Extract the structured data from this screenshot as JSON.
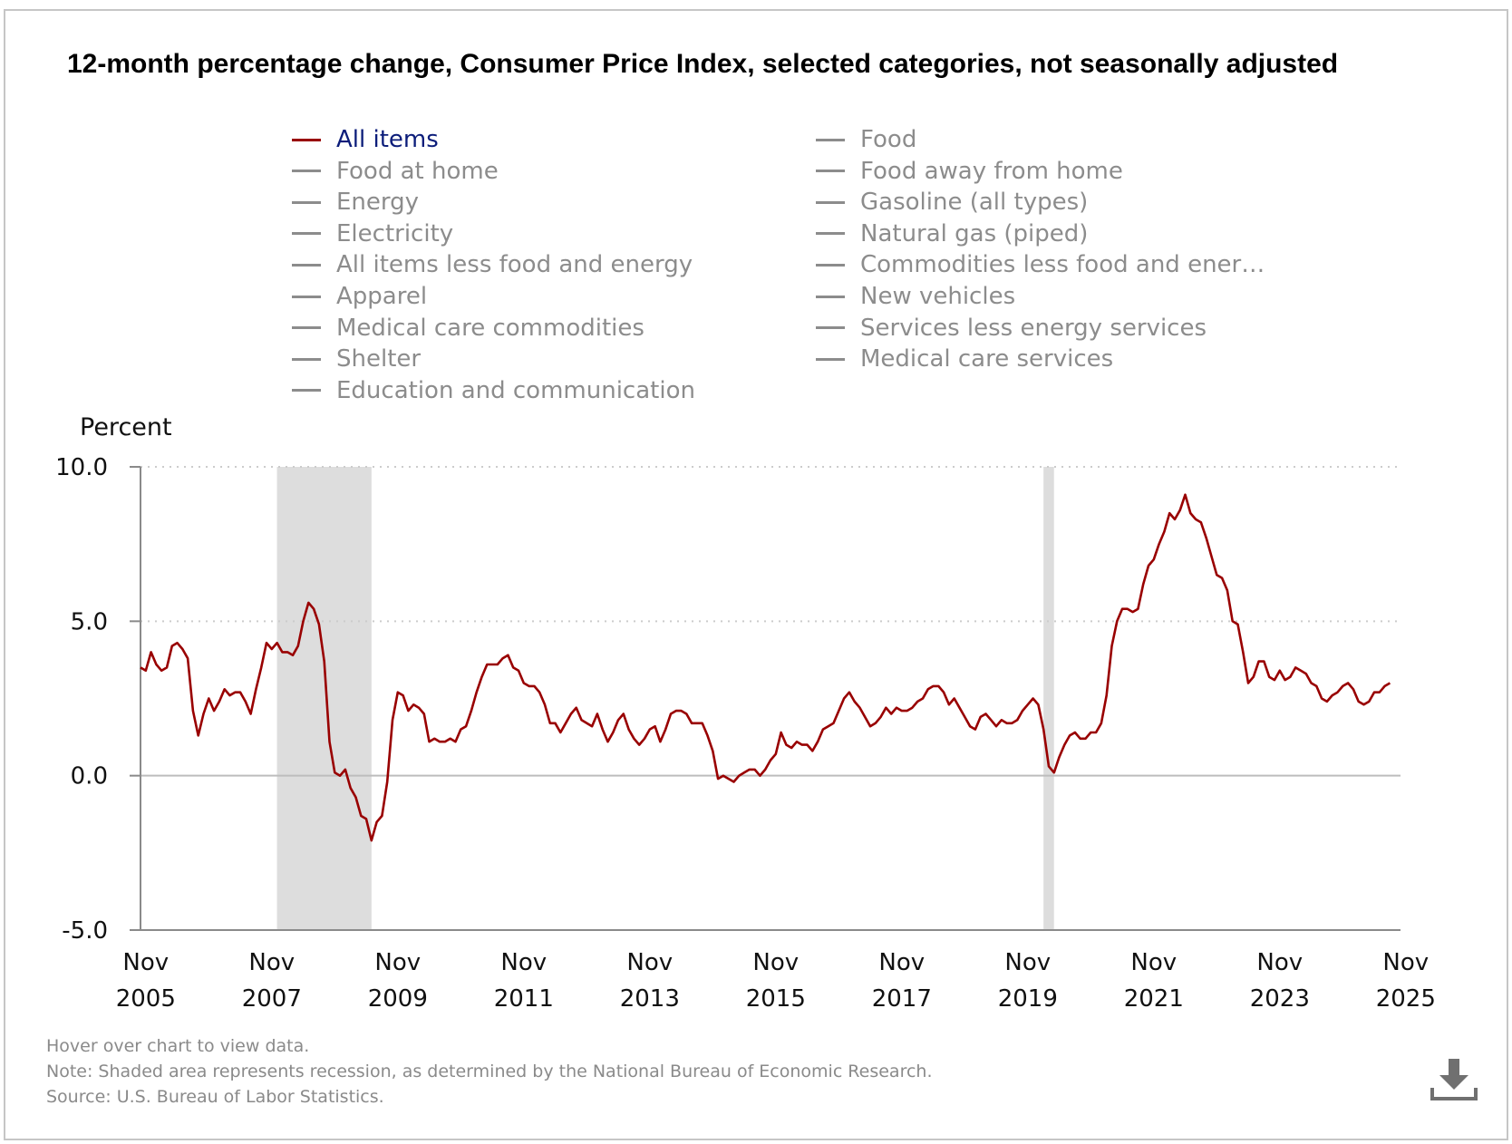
{
  "title": "12-month percentage change, Consumer Price Index, selected categories, not seasonally adjusted",
  "legend": [
    {
      "label": "All items",
      "active": true
    },
    {
      "label": "Food at home"
    },
    {
      "label": "Energy"
    },
    {
      "label": "Electricity"
    },
    {
      "label": "All items less food and energy"
    },
    {
      "label": "Apparel"
    },
    {
      "label": "Medical care commodities"
    },
    {
      "label": "Shelter"
    },
    {
      "label": "Education and communication"
    },
    {
      "label": "Food"
    },
    {
      "label": "Food away from home"
    },
    {
      "label": "Gasoline (all types)"
    },
    {
      "label": "Natural gas (piped)"
    },
    {
      "label": "Commodities less food and ener…"
    },
    {
      "label": "New vehicles"
    },
    {
      "label": "Services less energy services"
    },
    {
      "label": "Medical care services"
    }
  ],
  "footer": {
    "hover": "Hover over chart to view data.",
    "note": "Note: Shaded area represents recession, as determined by the National Bureau of Economic Research.",
    "source": "Source: U.S. Bureau of Labor Statistics."
  },
  "icons": {
    "download": "download-icon"
  },
  "colors": {
    "all_items": "#990000",
    "inactive_legend": "#8c8c8c",
    "active_legend_text": "#0c1d7a",
    "recession": "#dddddd"
  },
  "chart_data": {
    "type": "line",
    "ylabel": "Percent",
    "ylim": [
      -5,
      10
    ],
    "yticks": [
      "10.0",
      "5.0",
      "0.0",
      "-5.0"
    ],
    "ytick_values": [
      10,
      5,
      0,
      -5
    ],
    "xlim": [
      "2005-10",
      "2025-10"
    ],
    "xticks": [
      {
        "month": "Nov",
        "year": "2005",
        "x": "2005-11"
      },
      {
        "month": "Nov",
        "year": "2007",
        "x": "2007-11"
      },
      {
        "month": "Nov",
        "year": "2009",
        "x": "2009-11"
      },
      {
        "month": "Nov",
        "year": "2011",
        "x": "2011-11"
      },
      {
        "month": "Nov",
        "year": "2013",
        "x": "2013-11"
      },
      {
        "month": "Nov",
        "year": "2015",
        "x": "2015-11"
      },
      {
        "month": "Nov",
        "year": "2017",
        "x": "2017-11"
      },
      {
        "month": "Nov",
        "year": "2019",
        "x": "2019-11"
      },
      {
        "month": "Nov",
        "year": "2021",
        "x": "2021-11"
      },
      {
        "month": "Nov",
        "year": "2023",
        "x": "2023-11"
      },
      {
        "month": "Nov",
        "year": "2025",
        "x": "2025-11"
      }
    ],
    "grid": "dotted horizontal lines at 5.0 and 10.0",
    "recessions": [
      {
        "start": "2007-12",
        "end": "2009-06"
      },
      {
        "start": "2020-02",
        "end": "2020-04"
      }
    ],
    "series": [
      {
        "name": "All items",
        "color": "#990000",
        "start": "2005-10",
        "frequency": "monthly",
        "values": [
          3.5,
          3.4,
          4.0,
          3.6,
          3.4,
          3.5,
          4.2,
          4.3,
          4.1,
          3.8,
          2.1,
          1.3,
          2.0,
          2.5,
          2.1,
          2.4,
          2.8,
          2.6,
          2.7,
          2.7,
          2.4,
          2.0,
          2.8,
          3.5,
          4.3,
          4.1,
          4.3,
          4.0,
          4.0,
          3.9,
          4.2,
          5.0,
          5.6,
          5.4,
          4.9,
          3.7,
          1.1,
          0.1,
          0.0,
          0.2,
          -0.4,
          -0.7,
          -1.3,
          -1.4,
          -2.1,
          -1.5,
          -1.3,
          -0.2,
          1.8,
          2.7,
          2.6,
          2.1,
          2.3,
          2.2,
          2.0,
          1.1,
          1.2,
          1.1,
          1.1,
          1.2,
          1.1,
          1.5,
          1.6,
          2.1,
          2.7,
          3.2,
          3.6,
          3.6,
          3.6,
          3.8,
          3.9,
          3.5,
          3.4,
          3.0,
          2.9,
          2.9,
          2.7,
          2.3,
          1.7,
          1.7,
          1.4,
          1.7,
          2.0,
          2.2,
          1.8,
          1.7,
          1.6,
          2.0,
          1.5,
          1.1,
          1.4,
          1.8,
          2.0,
          1.5,
          1.2,
          1.0,
          1.2,
          1.5,
          1.6,
          1.1,
          1.5,
          2.0,
          2.1,
          2.1,
          2.0,
          1.7,
          1.7,
          1.7,
          1.3,
          0.8,
          -0.1,
          0.0,
          -0.1,
          -0.2,
          0.0,
          0.1,
          0.2,
          0.2,
          0.0,
          0.2,
          0.5,
          0.7,
          1.4,
          1.0,
          0.9,
          1.1,
          1.0,
          1.0,
          0.8,
          1.1,
          1.5,
          1.6,
          1.7,
          2.1,
          2.5,
          2.7,
          2.4,
          2.2,
          1.9,
          1.6,
          1.7,
          1.9,
          2.2,
          2.0,
          2.2,
          2.1,
          2.1,
          2.2,
          2.4,
          2.5,
          2.8,
          2.9,
          2.9,
          2.7,
          2.3,
          2.5,
          2.2,
          1.9,
          1.6,
          1.5,
          1.9,
          2.0,
          1.8,
          1.6,
          1.8,
          1.7,
          1.7,
          1.8,
          2.1,
          2.3,
          2.5,
          2.3,
          1.5,
          0.3,
          0.1,
          0.6,
          1.0,
          1.3,
          1.4,
          1.2,
          1.2,
          1.4,
          1.4,
          1.7,
          2.6,
          4.2,
          5.0,
          5.4,
          5.4,
          5.3,
          5.4,
          6.2,
          6.8,
          7.0,
          7.5,
          7.9,
          8.5,
          8.3,
          8.6,
          9.1,
          8.5,
          8.3,
          8.2,
          7.7,
          7.1,
          6.5,
          6.4,
          6.0,
          5.0,
          4.9,
          4.0,
          3.0,
          3.2,
          3.7,
          3.7,
          3.2,
          3.1,
          3.4,
          3.1,
          3.2,
          3.5,
          3.4,
          3.3,
          3.0,
          2.9,
          2.5,
          2.4,
          2.6,
          2.7,
          2.9,
          3.0,
          2.8,
          2.4,
          2.3,
          2.4,
          2.7,
          2.7,
          2.9,
          3.0
        ]
      }
    ]
  }
}
